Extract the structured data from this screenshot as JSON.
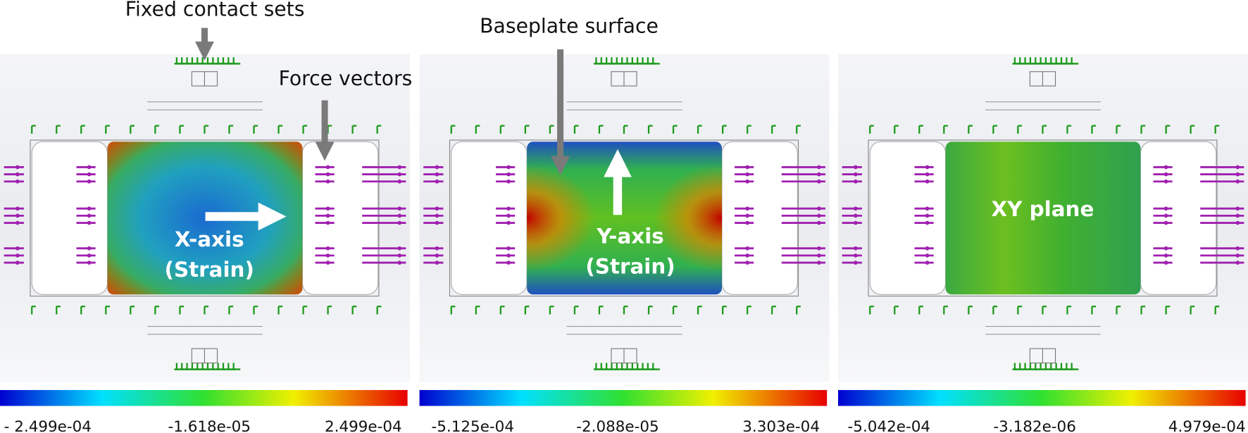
{
  "annotations": {
    "fixed_contact_sets": "Fixed contact sets",
    "force_vectors": "Force vectors",
    "baseplate_surface": "Baseplate surface"
  },
  "panels": [
    {
      "label": [
        "X-axis",
        "(Strain)"
      ],
      "colorbar": {
        "min": "- 2.499e-04",
        "mid": "-1.618e-05",
        "max": "2.499e-04"
      }
    },
    {
      "label": [
        "Y-axis",
        "(Strain)"
      ],
      "colorbar": {
        "min": "-5.125e-04",
        "mid": "-2.088e-05",
        "max": "3.303e-04"
      }
    },
    {
      "label": [
        "XY plane"
      ],
      "colorbar": {
        "min": "-5.042e-04",
        "mid": "-3.182e-06",
        "max": "4.979e-04"
      }
    }
  ]
}
